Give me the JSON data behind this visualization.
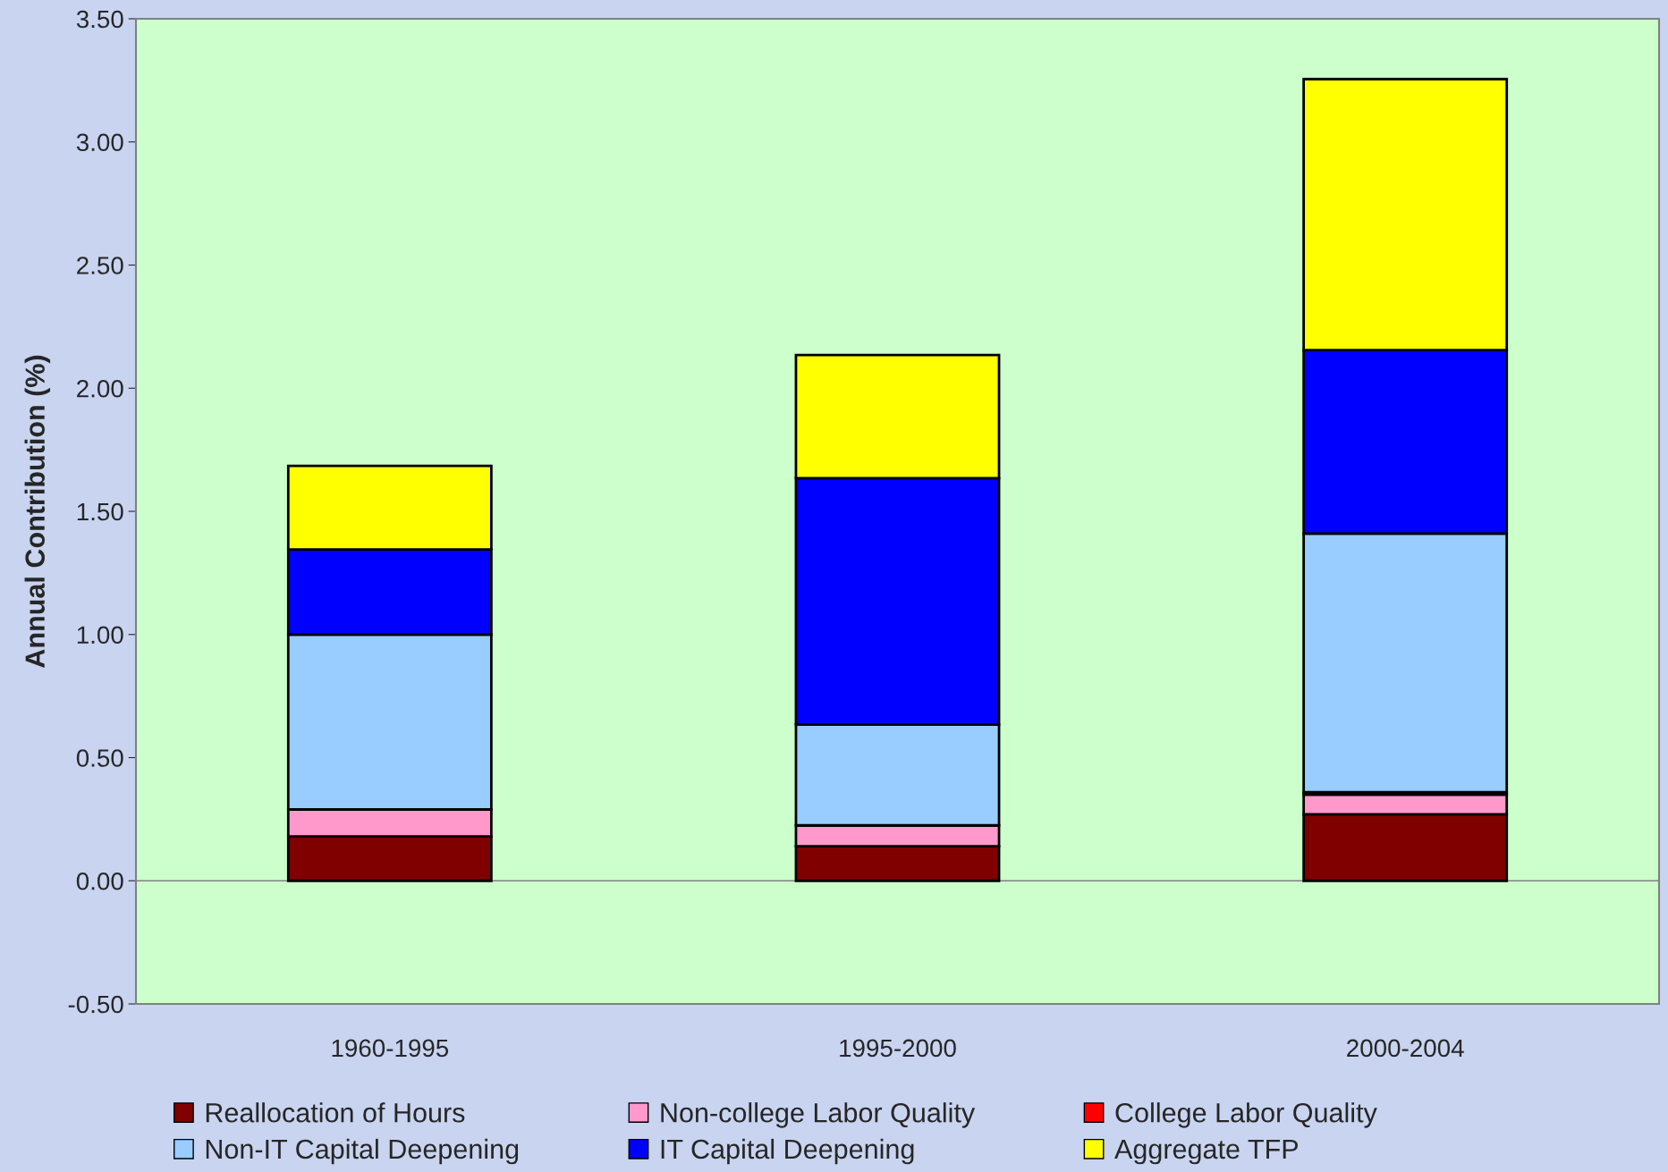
{
  "chart_data": {
    "type": "bar",
    "stacked": true,
    "ylabel": "Annual Contribution (%)",
    "categories": [
      "1960-1995",
      "1995-2000",
      "2000-2004"
    ],
    "series": [
      {
        "name": "Reallocation of Hours",
        "color": "#800000",
        "values": [
          0.18,
          0.14,
          0.27
        ]
      },
      {
        "name": "Non-college Labor Quality",
        "color": "#ff99cc",
        "values": [
          0.11,
          0.085,
          0.08
        ]
      },
      {
        "name": "College Labor Quality",
        "color": "#ff0000",
        "values": [
          0.0,
          0.0,
          0.01
        ]
      },
      {
        "name": "Non-IT Capital Deepening",
        "color": "#99ccff",
        "values": [
          0.71,
          0.41,
          1.05
        ]
      },
      {
        "name": "IT Capital Deepening",
        "color": "#0000ff",
        "values": [
          0.345,
          1.0,
          0.745
        ]
      },
      {
        "name": "Aggregate TFP",
        "color": "#ffff00",
        "values": [
          0.34,
          0.5,
          1.1
        ]
      }
    ],
    "ylim": [
      -0.5,
      3.5
    ],
    "yticks": [
      {
        "value": -0.5,
        "label": "-0.50"
      },
      {
        "value": 0,
        "label": "0.00"
      },
      {
        "value": 0.5,
        "label": "0.50"
      },
      {
        "value": 1,
        "label": "1.00"
      },
      {
        "value": 1.5,
        "label": "1.50"
      },
      {
        "value": 2,
        "label": "2.00"
      },
      {
        "value": 2.5,
        "label": "2.50"
      },
      {
        "value": 3,
        "label": "3.00"
      },
      {
        "value": 3.5,
        "label": "3.50"
      }
    ],
    "ref_lines": [
      {
        "axis": "y",
        "value": 0,
        "color": "#808080"
      }
    ],
    "grid": false,
    "legend": "bottom"
  }
}
